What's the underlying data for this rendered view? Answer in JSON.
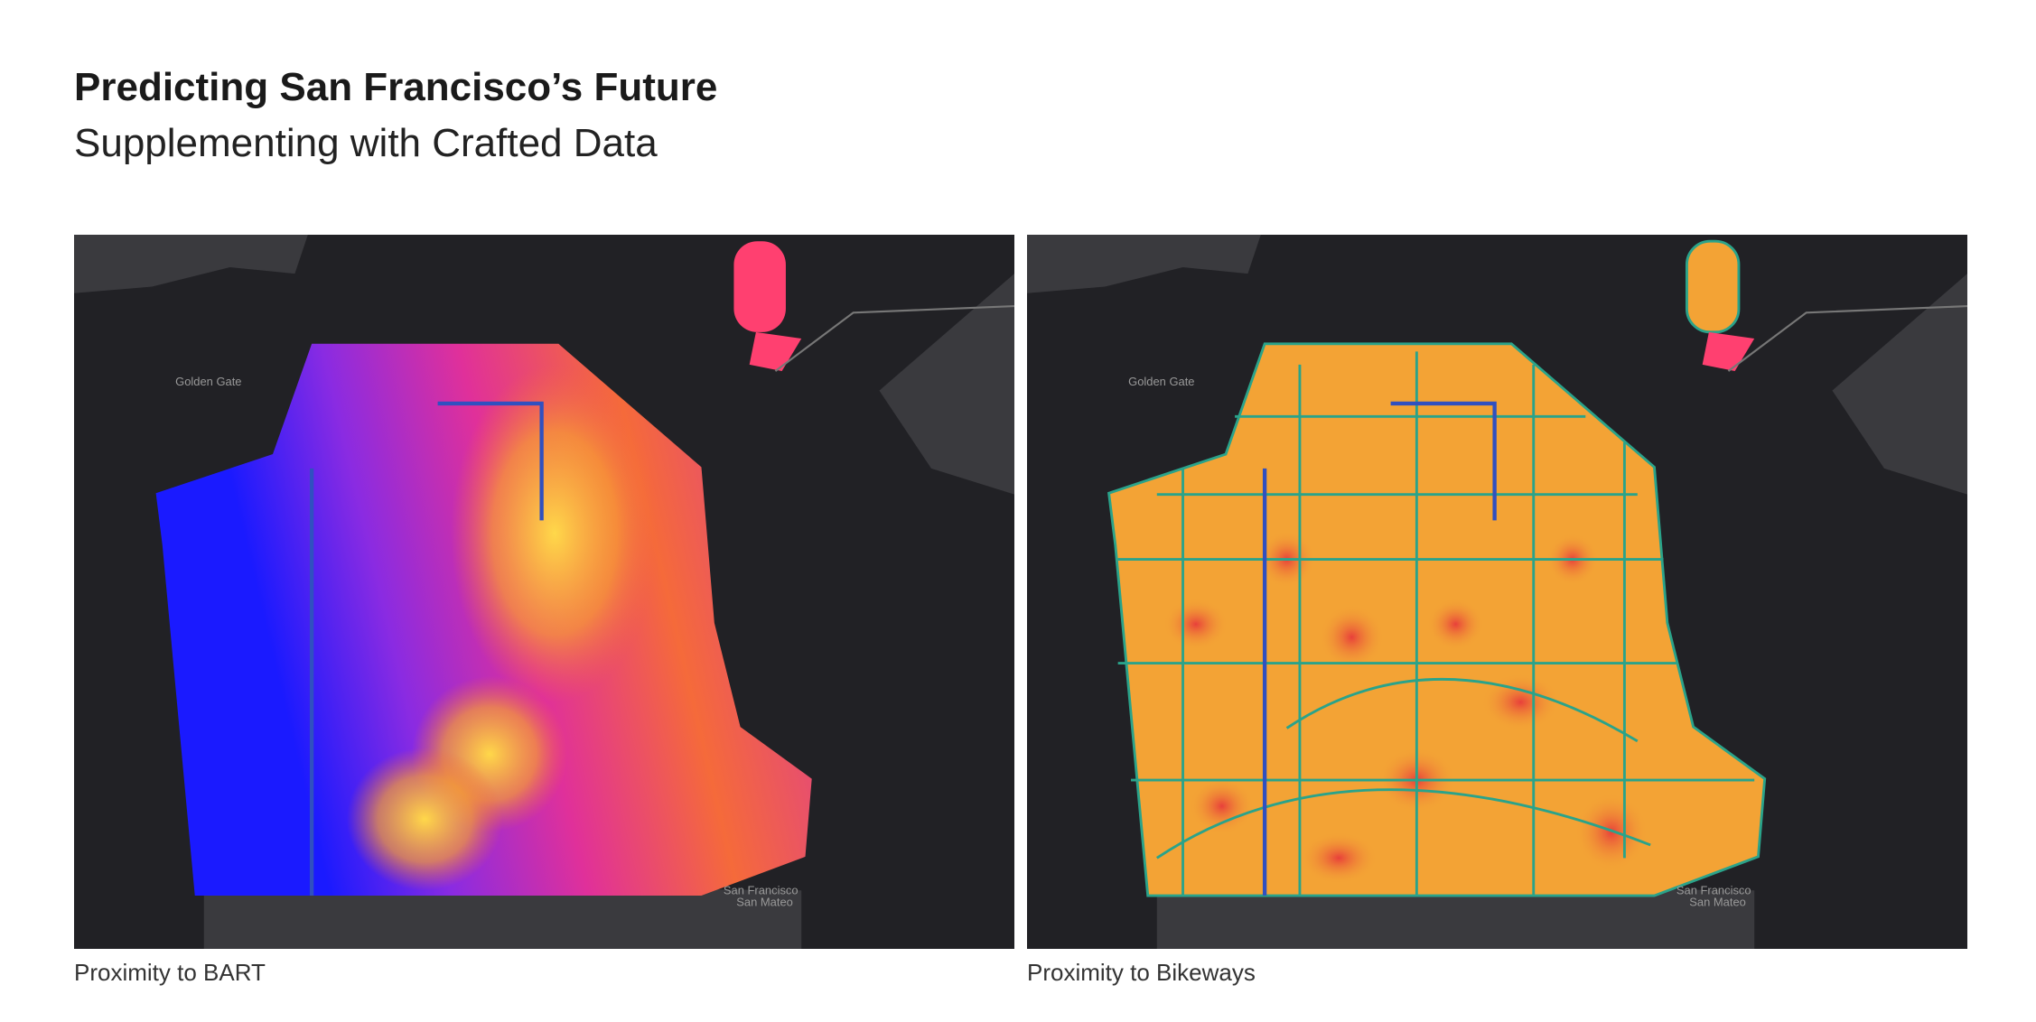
{
  "header": {
    "title": "Predicting San Francisco’s Future",
    "subtitle": "Supplementing with Crafted Data"
  },
  "maps": [
    {
      "caption": "Proximity to BART",
      "labels": [
        "Golden Gate",
        "San Francisco",
        "San Mateo"
      ]
    },
    {
      "caption": "Proximity to Bikeways",
      "labels": [
        "Golden Gate",
        "San Francisco",
        "San Mateo"
      ]
    }
  ]
}
